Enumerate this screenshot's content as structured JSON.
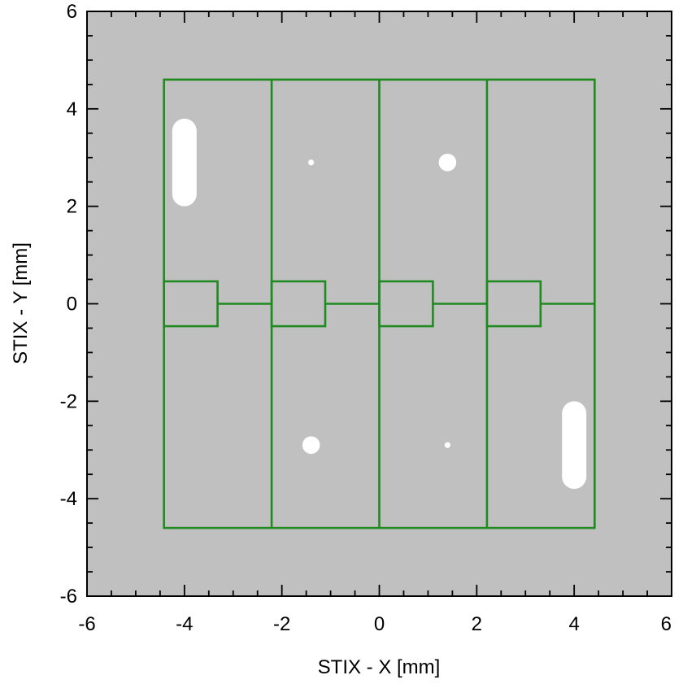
{
  "chart_data": {
    "type": "diagram",
    "xlabel": "STIX - X [mm]",
    "ylabel": "STIX - Y [mm]",
    "xlim": [
      -6,
      6
    ],
    "ylim": [
      -6,
      6
    ],
    "xticks": [
      -6,
      -4,
      -2,
      0,
      2,
      4,
      6
    ],
    "yticks": [
      -6,
      -4,
      -2,
      0,
      2,
      4,
      6
    ],
    "xtick_labels": [
      "-6",
      "-4",
      "-2",
      "0",
      "2",
      "4",
      "6"
    ],
    "ytick_labels": [
      "-6",
      "-4",
      "-2",
      "0",
      "2",
      "4",
      "6"
    ],
    "minor_step": 0.5,
    "colors": {
      "background": "#c0c0c0",
      "outline": "#1f8a1f",
      "hole": "#ffffff",
      "axis": "#000000"
    },
    "outline": {
      "xmin": -4.42,
      "xmax": 4.42,
      "ymin": -4.6,
      "ymax": 4.6,
      "column_dividers": [
        -2.21,
        0,
        2.21
      ]
    },
    "pixels": [
      {
        "x0": -4.42,
        "x1": -3.32,
        "y0": -0.46,
        "y1": 0.46,
        "connector_to": -2.21
      },
      {
        "x0": -2.21,
        "x1": -1.11,
        "y0": -0.46,
        "y1": 0.46,
        "connector_to": 0
      },
      {
        "x0": 0,
        "x1": 1.1,
        "y0": -0.46,
        "y1": 0.46,
        "connector_to": 2.21
      },
      {
        "x0": 2.21,
        "x1": 3.31,
        "y0": -0.46,
        "y1": 0.46,
        "connector_to": 4.42
      }
    ],
    "holes": [
      {
        "shape": "slot",
        "x": -4.0,
        "y0": 2.0,
        "y1": 3.8,
        "width": 0.5
      },
      {
        "shape": "slot",
        "x": 4.0,
        "y0": -3.8,
        "y1": -2.0,
        "width": 0.5
      },
      {
        "shape": "circle",
        "x": -1.4,
        "y": 2.9,
        "r": 0.06
      },
      {
        "shape": "circle",
        "x": 1.4,
        "y": 2.9,
        "r": 0.18
      },
      {
        "shape": "circle",
        "x": -1.4,
        "y": -2.9,
        "r": 0.18
      },
      {
        "shape": "circle",
        "x": 1.4,
        "y": -2.9,
        "r": 0.06
      }
    ]
  }
}
